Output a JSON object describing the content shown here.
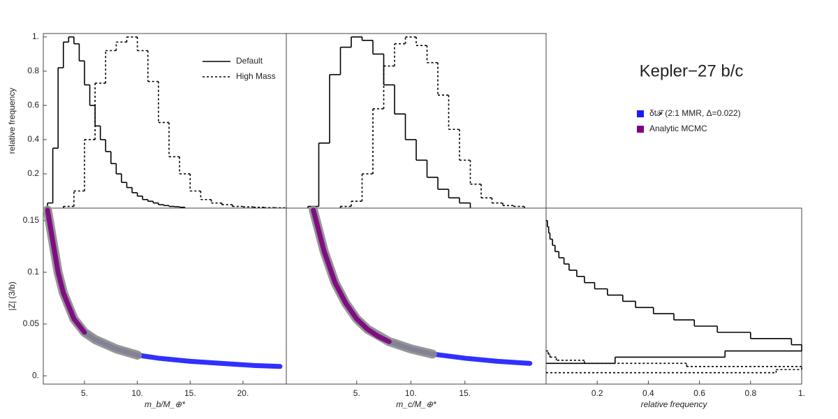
{
  "title": "Kepler−27 b/c",
  "chart_data": [
    {
      "type": "step",
      "ylabel": "relative frequency",
      "xlim": [
        1.1,
        24.1
      ],
      "ylim": [
        0,
        1.02
      ],
      "yticks": [
        0.2,
        0.4,
        0.6,
        0.8,
        {
          "value": 1,
          "label": "1."
        }
      ],
      "legend": "upper right",
      "series": [
        {
          "name": "Default",
          "color": "#000000",
          "dash": false,
          "bins": [
            1.5,
            2,
            2.5,
            3,
            3.5,
            4,
            4.5,
            5,
            5.5,
            6,
            6.5,
            7,
            7.5,
            8,
            8.5,
            9,
            9.5,
            10,
            10.5,
            11,
            11.5,
            12,
            12.5,
            13,
            13.5,
            14,
            14.5
          ],
          "values": [
            0.03,
            0.35,
            0.82,
            0.97,
            1.0,
            0.96,
            0.86,
            0.72,
            0.6,
            0.48,
            0.4,
            0.33,
            0.26,
            0.2,
            0.15,
            0.12,
            0.09,
            0.07,
            0.05,
            0.04,
            0.03,
            0.02,
            0.015,
            0.01,
            0.008,
            0.005
          ]
        },
        {
          "name": "High Mass",
          "color": "#000000",
          "dash": true,
          "bins": [
            3,
            4,
            5,
            6,
            7,
            8,
            9,
            10,
            11,
            12,
            13,
            14,
            15,
            16,
            17,
            18,
            19,
            20,
            21,
            22,
            23,
            24
          ],
          "values": [
            0.01,
            0.1,
            0.4,
            0.73,
            0.92,
            0.97,
            1.0,
            0.92,
            0.74,
            0.5,
            0.3,
            0.2,
            0.1,
            0.05,
            0.03,
            0.02,
            0.01,
            0.007,
            0.005,
            0.003,
            0.002
          ]
        }
      ]
    },
    {
      "type": "step",
      "xlim": [
        -1.5,
        22.5
      ],
      "ylim": [
        0,
        1.02
      ],
      "series": [
        {
          "color": "#000000",
          "dash": false,
          "bins": [
            0.5,
            1.5,
            2.5,
            3.5,
            4.5,
            5.5,
            6.5,
            7.5,
            8.5,
            9.5,
            10.5,
            11.5,
            12.5,
            13.5,
            14.5,
            15.5
          ],
          "values": [
            0.01,
            0.38,
            0.78,
            0.94,
            1.0,
            0.98,
            0.9,
            0.72,
            0.55,
            0.4,
            0.28,
            0.18,
            0.11,
            0.06,
            0.03
          ]
        },
        {
          "color": "#000000",
          "dash": true,
          "bins": [
            3.5,
            4.5,
            5.5,
            6.5,
            7.5,
            8.5,
            9.5,
            10.5,
            11.5,
            12.5,
            13.5,
            14.5,
            15.5,
            16.5,
            17.5,
            18.5,
            19.5,
            20.5
          ],
          "values": [
            0.01,
            0.04,
            0.2,
            0.58,
            0.83,
            0.96,
            1.0,
            0.95,
            0.85,
            0.66,
            0.46,
            0.28,
            0.14,
            0.06,
            0.03,
            0.015,
            0.01
          ]
        }
      ]
    },
    {
      "type": "scatter",
      "xlabel": "m_b/M_⊕*",
      "ylabel": "|Z| (3/b)",
      "xlim": [
        1.1,
        24.1
      ],
      "ylim": [
        -0.008,
        0.162
      ],
      "xticks": [
        {
          "value": 5,
          "label": "5."
        },
        {
          "value": 10,
          "label": "10."
        },
        {
          "value": 15,
          "label": "15."
        },
        {
          "value": 20,
          "label": "20."
        }
      ],
      "yticks": [
        {
          "value": 0,
          "label": "0."
        },
        0.05,
        0.1,
        0.15
      ],
      "series": [
        {
          "name": "δt𝓕 (2:1 MMR, Δ=0.022)",
          "color": "#1a1aff",
          "x": [
            1.5,
            2,
            2.5,
            3,
            4,
            5,
            6,
            8,
            10,
            12,
            15,
            18,
            21,
            23.5
          ],
          "values": [
            0.16,
            0.13,
            0.1,
            0.08,
            0.055,
            0.042,
            0.035,
            0.026,
            0.02,
            0.017,
            0.014,
            0.012,
            0.01,
            0.009
          ]
        },
        {
          "color": "#8c8c8c",
          "x": [
            1.5,
            2,
            2.5,
            3,
            4,
            5,
            6,
            8,
            10
          ],
          "values": [
            0.16,
            0.13,
            0.1,
            0.08,
            0.055,
            0.042,
            0.035,
            0.026,
            0.02
          ]
        },
        {
          "name": "Analytic MCMC",
          "color": "#800080",
          "x": [
            1.5,
            2,
            2.5,
            3,
            4,
            5
          ],
          "values": [
            0.16,
            0.13,
            0.1,
            0.08,
            0.055,
            0.042
          ]
        }
      ]
    },
    {
      "type": "scatter",
      "xlabel": "m_c/M_⊕*",
      "xlim": [
        -1.5,
        22.5
      ],
      "ylim": [
        -0.008,
        0.162
      ],
      "xticks": [
        {
          "value": 5,
          "label": "5."
        },
        {
          "value": 10,
          "label": "10."
        },
        {
          "value": 15,
          "label": "15."
        }
      ],
      "series": [
        {
          "color": "#1a1aff",
          "x": [
            1,
            1.5,
            2,
            3,
            4,
            5,
            6,
            8,
            10,
            12,
            15,
            18,
            21
          ],
          "values": [
            0.16,
            0.14,
            0.12,
            0.09,
            0.07,
            0.055,
            0.045,
            0.033,
            0.026,
            0.021,
            0.017,
            0.014,
            0.012
          ]
        },
        {
          "color": "#8c8c8c",
          "x": [
            1,
            1.5,
            2,
            3,
            4,
            5,
            6,
            8,
            10,
            12
          ],
          "values": [
            0.16,
            0.14,
            0.12,
            0.09,
            0.07,
            0.055,
            0.045,
            0.033,
            0.026,
            0.021
          ]
        },
        {
          "color": "#800080",
          "x": [
            1,
            1.5,
            2,
            3,
            4,
            5,
            6,
            7,
            8
          ],
          "values": [
            0.16,
            0.14,
            0.12,
            0.09,
            0.07,
            0.055,
            0.045,
            0.038,
            0.033
          ]
        }
      ]
    },
    {
      "type": "step",
      "orientation": "horizontal",
      "xlabel": "relative frequency",
      "xlim": [
        0,
        1
      ],
      "ylim": [
        -0.008,
        0.162
      ],
      "xticks": [
        0.2,
        0.4,
        0.6,
        0.8,
        {
          "value": 1,
          "label": "1."
        }
      ],
      "series": [
        {
          "color": "#000000",
          "dash": false,
          "bins": [
            0.012,
            0.018,
            0.024,
            0.03,
            0.036,
            0.042,
            0.048,
            0.054,
            0.06,
            0.066,
            0.072,
            0.078,
            0.084,
            0.09,
            0.096,
            0.102,
            0.108,
            0.114,
            0.12,
            0.126,
            0.132,
            0.138,
            0.144,
            0.15
          ],
          "values": [
            0.27,
            0.7,
            1.0,
            0.96,
            0.8,
            0.67,
            0.58,
            0.5,
            0.42,
            0.35,
            0.3,
            0.24,
            0.19,
            0.15,
            0.12,
            0.09,
            0.07,
            0.05,
            0.035,
            0.025,
            0.015,
            0.01,
            0.005
          ]
        },
        {
          "color": "#000000",
          "dash": true,
          "bins": [
            0.003,
            0.006,
            0.009,
            0.012,
            0.015,
            0.018,
            0.021,
            0.024
          ],
          "values": [
            0.9,
            1.0,
            0.55,
            0.15,
            0.04,
            0.015,
            0.008
          ]
        }
      ]
    }
  ]
}
